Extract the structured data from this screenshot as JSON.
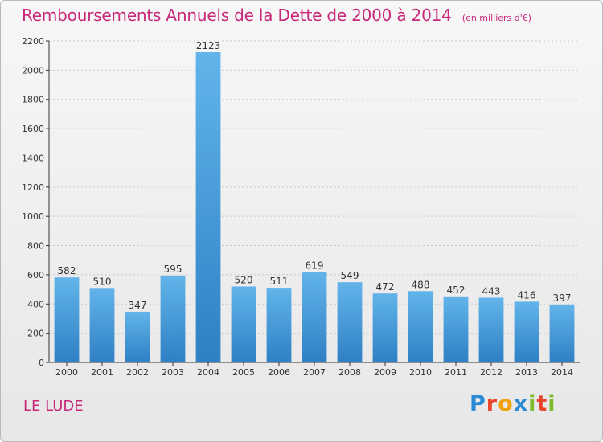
{
  "header": {
    "title": "Remboursements Annuels de la Dette de 2000 à 2014",
    "unit": "(en milliers d'€)"
  },
  "footer": {
    "commune": "LE LUDE",
    "logo_text": "Proxiti",
    "logo_colors": [
      "#2a8ad4",
      "#e8452c",
      "#f0a20e",
      "#2a8ad4",
      "#7dbb2c",
      "#e8452c",
      "#7dbb2c"
    ]
  },
  "colors": {
    "title": "#c8287a",
    "bar_light": "#62b4ea",
    "bar_dark": "#2f80c4",
    "grid": "#c9c9c9",
    "axis": "#333333"
  },
  "chart_data": {
    "type": "bar",
    "title": "Remboursements Annuels de la Dette de 2000 à 2014",
    "xlabel": "",
    "ylabel": "",
    "categories": [
      "2000",
      "2001",
      "2002",
      "2003",
      "2004",
      "2005",
      "2006",
      "2007",
      "2008",
      "2009",
      "2010",
      "2011",
      "2012",
      "2013",
      "2014"
    ],
    "values": [
      582,
      510,
      347,
      595,
      2123,
      520,
      511,
      619,
      549,
      472,
      488,
      452,
      443,
      416,
      397
    ],
    "ylim": [
      0,
      2200
    ],
    "yticks": [
      0,
      200,
      400,
      600,
      800,
      1000,
      1200,
      1400,
      1600,
      1800,
      2000,
      2200
    ],
    "grid": true,
    "data_labels": true
  }
}
